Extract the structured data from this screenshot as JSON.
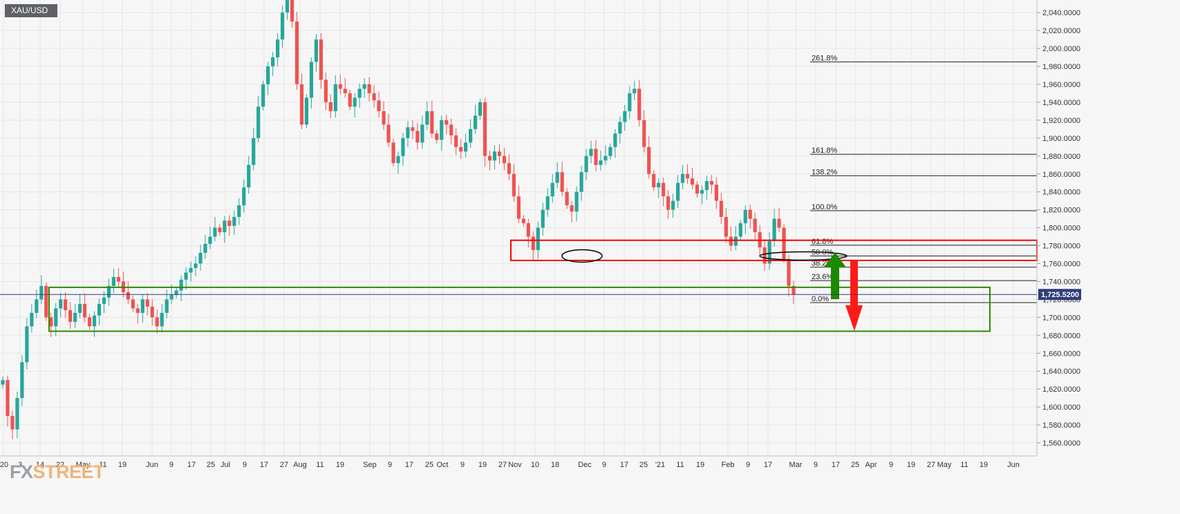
{
  "symbol": "XAU/USD",
  "watermark": {
    "prefix": "FX",
    "suffix": "STREET"
  },
  "colors": {
    "bull": "#26a69a",
    "bear": "#ef5350",
    "resistance_zone": "#ff0000",
    "support_zone": "#2e8b00",
    "arrow_up": "#1a8a00",
    "arrow_down": "#ff1a1a",
    "price_badge": "#2f3d7a",
    "grid": "#e6e6e6"
  },
  "chart_data": {
    "type": "candlestick",
    "y_ticks": [
      "1,560.0000",
      "1,580.0000",
      "1,600.0000",
      "1,620.0000",
      "1,640.0000",
      "1,660.0000",
      "1,680.0000",
      "1,700.0000",
      "1,720.0000",
      "1,740.0000",
      "1,760.0000",
      "1,780.0000",
      "1,800.0000",
      "1,820.0000",
      "1,840.0000",
      "1,860.0000",
      "1,880.0000",
      "1,900.0000",
      "1,920.0000",
      "1,940.0000",
      "1,960.0000",
      "1,980.0000",
      "2,000.0000",
      "2,020.0000",
      "2,040.0000"
    ],
    "x_ticks": [
      "'20",
      "3",
      "14",
      "22",
      "May",
      "11",
      "19",
      "Jun",
      "9",
      "17",
      "25",
      "Jul",
      "9",
      "17",
      "27",
      "Aug",
      "11",
      "19",
      "Sep",
      "9",
      "17",
      "25",
      "Oct",
      "9",
      "19",
      "27",
      "Nov",
      "10",
      "18",
      "Dec",
      "9",
      "17",
      "25",
      "'21",
      "11",
      "19",
      "Feb",
      "9",
      "17",
      "Mar",
      "9",
      "17",
      "25",
      "Apr",
      "9",
      "19",
      "27",
      "May",
      "11",
      "19",
      "Jun"
    ],
    "last_price": "1,725.5200",
    "last_price_value": 1725.52,
    "ylim": [
      1545,
      2053
    ],
    "bars_close": [
      1630,
      1590,
      1575,
      1610,
      1650,
      1690,
      1705,
      1720,
      1735,
      1700,
      1690,
      1710,
      1720,
      1708,
      1695,
      1705,
      1715,
      1700,
      1690,
      1702,
      1715,
      1722,
      1735,
      1745,
      1740,
      1728,
      1720,
      1710,
      1705,
      1720,
      1712,
      1700,
      1690,
      1705,
      1720,
      1725,
      1730,
      1742,
      1750,
      1755,
      1760,
      1772,
      1782,
      1790,
      1800,
      1795,
      1808,
      1802,
      1812,
      1825,
      1845,
      1870,
      1900,
      1935,
      1960,
      1980,
      1990,
      2010,
      2040,
      2070,
      2030,
      1960,
      1915,
      1945,
      1985,
      2010,
      1965,
      1940,
      1930,
      1960,
      1955,
      1950,
      1935,
      1945,
      1955,
      1960,
      1950,
      1942,
      1930,
      1915,
      1895,
      1872,
      1880,
      1900,
      1912,
      1908,
      1895,
      1915,
      1930,
      1905,
      1898,
      1920,
      1915,
      1903,
      1890,
      1885,
      1895,
      1910,
      1925,
      1940,
      1880,
      1875,
      1885,
      1880,
      1872,
      1860,
      1835,
      1810,
      1805,
      1790,
      1775,
      1800,
      1820,
      1835,
      1850,
      1862,
      1840,
      1825,
      1818,
      1840,
      1862,
      1880,
      1888,
      1870,
      1875,
      1880,
      1890,
      1905,
      1918,
      1930,
      1950,
      1955,
      1920,
      1890,
      1860,
      1845,
      1850,
      1835,
      1820,
      1830,
      1850,
      1860,
      1855,
      1848,
      1838,
      1842,
      1852,
      1848,
      1830,
      1812,
      1790,
      1780,
      1790,
      1805,
      1820,
      1810,
      1795,
      1778,
      1760,
      1785,
      1810,
      1800,
      1765,
      1735,
      1725.52
    ],
    "bars_open_first": 1625,
    "fibonacci_levels": [
      {
        "label": "0.0%",
        "value": 1716.5
      },
      {
        "label": "23.6%",
        "value": 1741
      },
      {
        "label": "38.2%",
        "value": 1756
      },
      {
        "label": "50.0%",
        "value": 1768.5
      },
      {
        "label": "61.8%",
        "value": 1780.5
      },
      {
        "label": "100.0%",
        "value": 1819
      },
      {
        "label": "138.2%",
        "value": 1858
      },
      {
        "label": "161.8%",
        "value": 1882
      },
      {
        "label": "261.8%",
        "value": 1985
      }
    ],
    "zones": [
      {
        "name": "resistance",
        "y_range": [
          1763.5,
          1786
        ]
      },
      {
        "name": "support",
        "y_range": [
          1684.5,
          1733.5
        ]
      }
    ],
    "grid": true,
    "legend": "none"
  }
}
